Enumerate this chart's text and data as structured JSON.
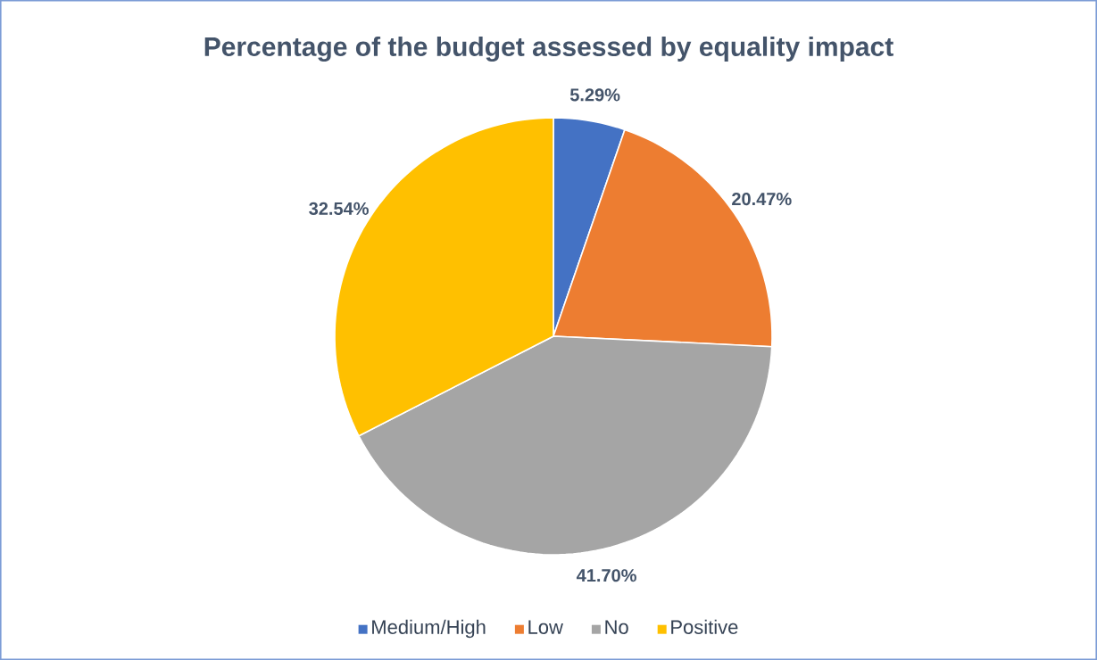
{
  "chart_data": {
    "type": "pie",
    "title": "Percentage of the budget assessed by equality impact",
    "categories": [
      "Medium/High",
      "Low",
      "No",
      "Positive"
    ],
    "values": [
      5.29,
      20.47,
      41.7,
      32.54
    ],
    "value_labels": [
      "5.29%",
      "20.47%",
      "41.70%",
      "32.54%"
    ],
    "colors": [
      "#4472c4",
      "#ed7d31",
      "#a5a5a5",
      "#ffc000"
    ],
    "legend": "bottom"
  }
}
